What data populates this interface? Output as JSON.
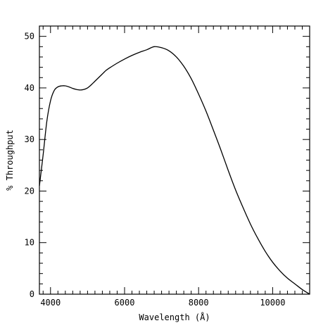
{
  "chart_data": {
    "type": "line",
    "title": "",
    "xlabel": "Wavelength (Å)",
    "ylabel": "% Throughput",
    "xlim": [
      3700,
      11000
    ],
    "ylim": [
      0,
      52
    ],
    "x_major_ticks": [
      4000,
      6000,
      8000,
      10000
    ],
    "x_minor_step": 200,
    "y_major_ticks": [
      0,
      10,
      20,
      30,
      40,
      50
    ],
    "y_minor_step": 2,
    "x_tick_labels": [
      "4000",
      "6000",
      "8000",
      "10000"
    ],
    "y_tick_labels": [
      "0",
      "10",
      "20",
      "30",
      "40",
      "50"
    ],
    "grid": false,
    "legend": "none",
    "series": [
      {
        "color": "#000000",
        "points": [
          [
            3700,
            21.0
          ],
          [
            3800,
            27.0
          ],
          [
            3900,
            33.5
          ],
          [
            4000,
            37.5
          ],
          [
            4100,
            39.5
          ],
          [
            4200,
            40.2
          ],
          [
            4300,
            40.4
          ],
          [
            4400,
            40.4
          ],
          [
            4500,
            40.2
          ],
          [
            4600,
            39.9
          ],
          [
            4700,
            39.7
          ],
          [
            4800,
            39.6
          ],
          [
            4900,
            39.7
          ],
          [
            5000,
            40.0
          ],
          [
            5100,
            40.6
          ],
          [
            5200,
            41.3
          ],
          [
            5300,
            42.0
          ],
          [
            5400,
            42.7
          ],
          [
            5500,
            43.4
          ],
          [
            5600,
            43.9
          ],
          [
            5800,
            44.8
          ],
          [
            6000,
            45.6
          ],
          [
            6200,
            46.3
          ],
          [
            6400,
            46.9
          ],
          [
            6600,
            47.4
          ],
          [
            6800,
            48.0
          ],
          [
            7000,
            47.8
          ],
          [
            7200,
            47.2
          ],
          [
            7400,
            46.0
          ],
          [
            7600,
            44.2
          ],
          [
            7800,
            41.8
          ],
          [
            8000,
            38.8
          ],
          [
            8200,
            35.5
          ],
          [
            8400,
            31.8
          ],
          [
            8600,
            28.0
          ],
          [
            8800,
            24.0
          ],
          [
            9000,
            20.2
          ],
          [
            9200,
            16.8
          ],
          [
            9400,
            13.6
          ],
          [
            9600,
            10.8
          ],
          [
            9800,
            8.3
          ],
          [
            10000,
            6.2
          ],
          [
            10200,
            4.5
          ],
          [
            10400,
            3.1
          ],
          [
            10600,
            2.0
          ],
          [
            10800,
            0.9
          ],
          [
            11000,
            0.0
          ]
        ]
      }
    ]
  }
}
